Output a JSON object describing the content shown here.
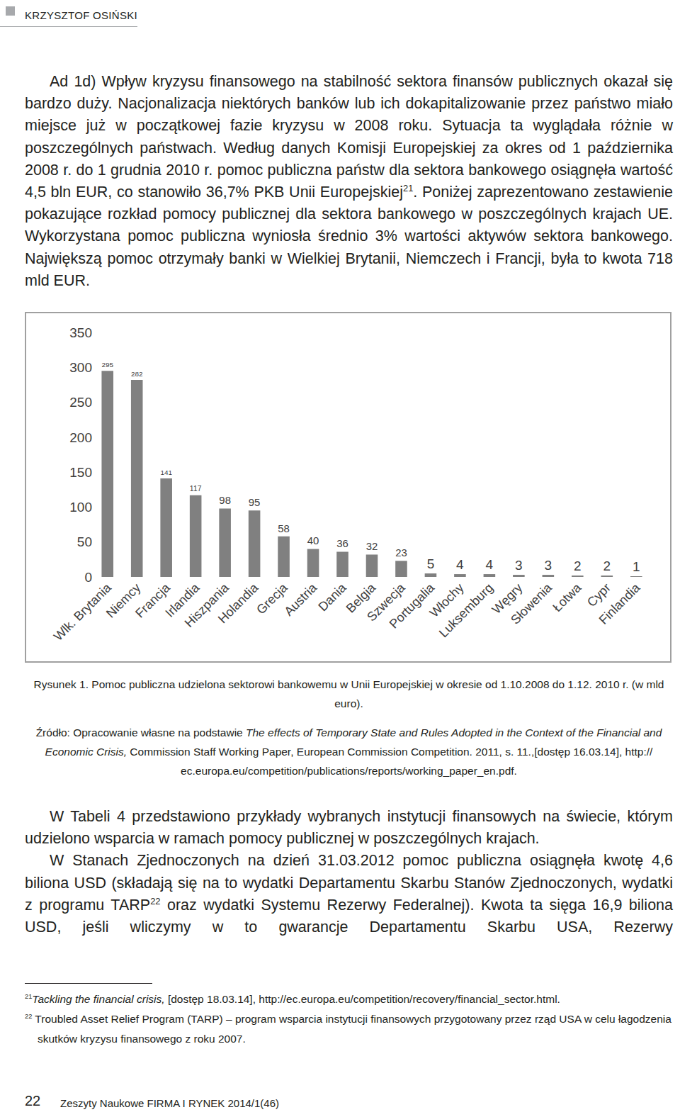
{
  "header": {
    "author": "KRZYSZTOF OSIŃSKI"
  },
  "paragraphs_top": [
    [
      "Ad 1d) Wpływ kryzysu finansowego na stabilność sektora finansów publicznych okazał się bardzo duży. Nacjonalizacja niektórych banków lub ich dokapitalizowanie przez państwo miało miejsce już w początkowej fazie kryzysu w 2008 roku. Sytuacja ta wyglądała różnie w poszczególnych państwach. Według danych Komisji Europejskiej za okres od 1 października 2008 r. do 1 grudnia 2010 r. pomoc publiczna państw dla sektora bankowego osiągnęła wartość 4,5 bln EUR, co stanowiło 36,7% PKB Unii Europejskiej",
      {
        "sup": "21"
      },
      ". Poniżej zaprezentowano zestawienie pokazujące rozkład pomocy publicznej dla sektora bankowego w poszczególnych krajach UE. Wykorzystana pomoc publiczna wyniosła średnio 3% wartości aktywów sektora bankowego. Największą pomoc otrzymały banki w Wielkiej Brytanii, Niemczech i Francji, była to kwota 718 mld EUR."
    ]
  ],
  "chart_data": {
    "type": "bar",
    "categories": [
      "Wlk. Brytania",
      "Niemcy",
      "Francja",
      "Irlandia",
      "Hiszpania",
      "Holandia",
      "Grecja",
      "Austria",
      "Dania",
      "Belgia",
      "Szwecja",
      "Portugalia",
      "Włochy",
      "Luksemburg",
      "Węgry",
      "Słowenia",
      "Łotwa",
      "Cypr",
      "Finlandia"
    ],
    "values": [
      295,
      282,
      141,
      117,
      98,
      95,
      58,
      40,
      36,
      32,
      23,
      5,
      4,
      4,
      3,
      3,
      2,
      2,
      1
    ],
    "color": "#808080",
    "ylim": [
      0,
      350
    ],
    "yticks": [
      0,
      50,
      100,
      150,
      200,
      250,
      300,
      350
    ],
    "grid": false,
    "data_labels": true
  },
  "caption": "Rysunek 1. Pomoc publiczna udzielona sektorowi bankowemu w Unii Europejskiej w okresie od 1.10.2008 do 1.12. 2010 r. (w mld euro).",
  "source": [
    "Źródło: Opracowanie własne na podstawie ",
    {
      "text": "The effects of Temporary State and Rules Adopted in the Context of the Financial and Economic Crisis,",
      "italic": true
    },
    " Commission Staff Working Paper, European Commission Competition. 2011, s. 11.,[dostęp 16.03.14], http:// ec.europa.eu/competition/publications/reports/working_paper_en.pdf."
  ],
  "paragraphs_bottom": [
    [
      "W Tabeli 4 przedstawiono przykłady wybranych instytucji finansowych na świecie, którym udzielono wsparcia w ramach pomocy publicznej w poszczególnych krajach."
    ],
    [
      "W Stanach Zjednoczonych na dzień 31.03.2012 pomoc publiczna osiągnęła kwotę 4,6 biliona USD (składają się na to wydatki Departamentu Skarbu Stanów Zjednoczonych, wydatki z programu TARP",
      {
        "sup": "22"
      },
      " oraz wydatki Systemu Rezerwy Federalnej). Kwota ta sięga 16,9 biliona USD, jeśli wliczymy w to gwarancje Departamentu Skarbu USA, Rezerwy"
    ]
  ],
  "footnotes": [
    {
      "number": "21",
      "parts": [
        {
          "text": "Tackling the financial crisis,",
          "italic": true
        },
        " [dostęp 18.03.14], http://ec.europa.eu/competition/recovery/financial_sector.html."
      ]
    },
    {
      "number": "22",
      "parts": [
        " Troubled Asset Relief Program (TARP) – program wsparcia instytucji finansowych przygotowany przez rząd USA w celu łagodzenia skutków kryzysu finansowego z roku 2007."
      ]
    }
  ],
  "footer": {
    "page": "22",
    "journal": "Zeszyty Naukowe FIRMA I RYNEK 2014/1(46)"
  }
}
